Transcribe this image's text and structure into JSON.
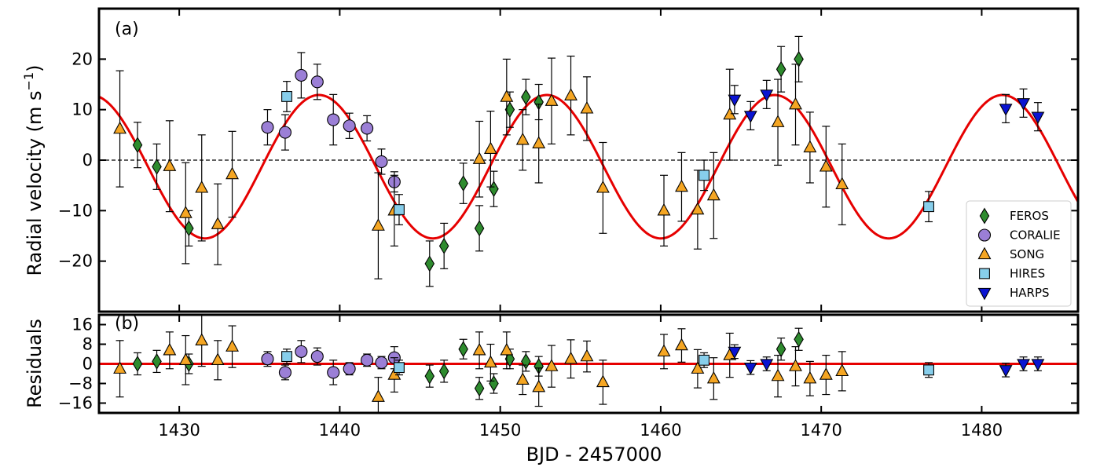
{
  "chart_data": {
    "type": "scatter",
    "xlabel": "BJD - 2457000",
    "xlim": [
      1425,
      1486
    ],
    "xticks": [
      1430,
      1440,
      1450,
      1460,
      1470,
      1480
    ],
    "model": {
      "name": "Keplerian fit",
      "amplitude": 14.2,
      "period": 14.2,
      "t0": 1438.7,
      "offset": -1.3,
      "color": "#e60000"
    },
    "top": {
      "panel_label": "(a)",
      "ylabel": "Radial velocity (m s",
      "ylabel_sup": "−1",
      "ylabel_close": ")",
      "ylim": [
        -30,
        30
      ],
      "yticks": [
        -20,
        -10,
        0,
        10,
        20
      ],
      "zero_line": "dashed"
    },
    "bottom": {
      "panel_label": "(b)",
      "ylabel": "Residuals",
      "ylim": [
        -20,
        20
      ],
      "yticks": [
        -16,
        -8,
        0,
        8,
        16
      ],
      "zero_line": "solid-red"
    },
    "legend": {
      "placement": "lower-right",
      "entries": [
        {
          "key": "FEROS",
          "label": "FEROS"
        },
        {
          "key": "CORALIE",
          "label": "CORALIE"
        },
        {
          "key": "SONG",
          "label": "SONG"
        },
        {
          "key": "HIRES",
          "label": "HIRES"
        },
        {
          "key": "HARPS",
          "label": "HARPS"
        }
      ]
    },
    "series": [
      {
        "name": "FEROS",
        "marker": "diamond",
        "color": "#2e8b2e",
        "x": [
          1427.4,
          1428.6,
          1430.6,
          1445.6,
          1446.5,
          1447.7,
          1448.7,
          1449.6,
          1450.6,
          1451.6,
          1452.4,
          1467.5,
          1468.6
        ],
        "y": [
          3,
          -1.3,
          -13.5,
          -20.5,
          -17,
          -4.6,
          -13.5,
          -5.7,
          10,
          12.5,
          11.5,
          18,
          20
        ],
        "err": [
          4.5,
          4.5,
          3.5,
          4.5,
          4.5,
          4,
          4.5,
          3.5,
          3.5,
          3.5,
          3.5,
          4.5,
          4.5
        ],
        "res": [
          0,
          1,
          0,
          -5,
          -3,
          6,
          -10,
          -8,
          2,
          1,
          -1,
          6,
          10
        ],
        "res_err": [
          4.5,
          4.5,
          4,
          4.5,
          4.5,
          4,
          4.5,
          4,
          4,
          4,
          4,
          4.5,
          4.5
        ]
      },
      {
        "name": "CORALIE",
        "marker": "circle",
        "color": "#9b7fd6",
        "x": [
          1435.5,
          1436.6,
          1437.6,
          1438.6,
          1439.6,
          1440.6,
          1441.7,
          1442.6,
          1443.4
        ],
        "y": [
          6.5,
          5.5,
          16.8,
          15.5,
          8,
          6.8,
          6.3,
          -0.3,
          -4.3
        ],
        "err": [
          3.5,
          3.5,
          4.5,
          3.5,
          5,
          2.5,
          2.5,
          2.5,
          2
        ],
        "res": [
          2,
          -3.5,
          5,
          3,
          -3.5,
          -2,
          1.5,
          0.5,
          2.5
        ],
        "res_err": [
          3,
          3,
          4.5,
          3.5,
          5,
          2.5,
          2.5,
          2.5,
          4.5
        ]
      },
      {
        "name": "SONG",
        "marker": "triangle-up",
        "color": "#f5a623",
        "x": [
          1426.3,
          1429.4,
          1430.4,
          1431.4,
          1432.4,
          1433.3,
          1442.4,
          1443.4,
          1448.7,
          1449.4,
          1450.4,
          1451.4,
          1452.4,
          1453.2,
          1454.4,
          1455.4,
          1456.4,
          1460.2,
          1461.3,
          1462.3,
          1463.3,
          1464.3,
          1467.3,
          1468.4,
          1469.3,
          1470.3,
          1471.3
        ],
        "y": [
          6.2,
          -1.2,
          -10.5,
          -5.5,
          -12.7,
          -2.8,
          -13,
          -10,
          0.2,
          2.2,
          12.5,
          4,
          3.3,
          11.7,
          12.8,
          10.2,
          -5.5,
          -10,
          -5.3,
          -9.8,
          -7,
          9,
          7.5,
          11,
          2.5,
          -1.3,
          -4.8
        ],
        "err": [
          11.5,
          9,
          10,
          10.5,
          8,
          8.5,
          10.5,
          7,
          7.5,
          7.5,
          7.5,
          6,
          7.8,
          8.5,
          7.8,
          6.3,
          9,
          7,
          6.8,
          7.8,
          8.5,
          9,
          8.5,
          8,
          7,
          8,
          8
        ],
        "res": [
          -2,
          5.5,
          1.5,
          9.5,
          1.5,
          7,
          -13.5,
          -4.5,
          5.5,
          0.5,
          5.5,
          -6.5,
          -9.5,
          -1,
          2,
          3,
          -7.5,
          5,
          7.5,
          -2,
          -6,
          3.5,
          -5,
          -1,
          -6,
          -4.5,
          -3
        ],
        "res_err": [
          11.5,
          7.5,
          10,
          10.5,
          8,
          8.5,
          8,
          7,
          7.5,
          7.5,
          7.5,
          6,
          7.8,
          8.5,
          7.8,
          6.3,
          9,
          7,
          6.8,
          7.8,
          8.5,
          9,
          8.5,
          8,
          7,
          8,
          8
        ]
      },
      {
        "name": "HIRES",
        "marker": "square",
        "color": "#87ceeb",
        "x": [
          1436.7,
          1443.7,
          1462.7,
          1476.7
        ],
        "y": [
          12.6,
          -9.8,
          -3,
          -9.2
        ],
        "err": [
          3,
          3,
          3,
          3
        ],
        "res": [
          3,
          -1.5,
          1.5,
          -2.5
        ],
        "res_err": [
          3,
          3,
          3,
          3
        ]
      },
      {
        "name": "HARPS",
        "marker": "triangle-down",
        "color": "#0a14d2",
        "x": [
          1464.6,
          1465.6,
          1466.6,
          1481.5,
          1482.6,
          1483.5
        ],
        "y": [
          12,
          8.8,
          13,
          10.2,
          11.3,
          8.6
        ],
        "err": [
          2.8,
          2.8,
          2.8,
          2.8,
          2.8,
          2.8
        ],
        "res": [
          5,
          -1.5,
          0,
          -2.5,
          0,
          0
        ],
        "res_err": [
          2.8,
          2.8,
          2.8,
          2.8,
          2.8,
          2.8
        ]
      }
    ]
  }
}
